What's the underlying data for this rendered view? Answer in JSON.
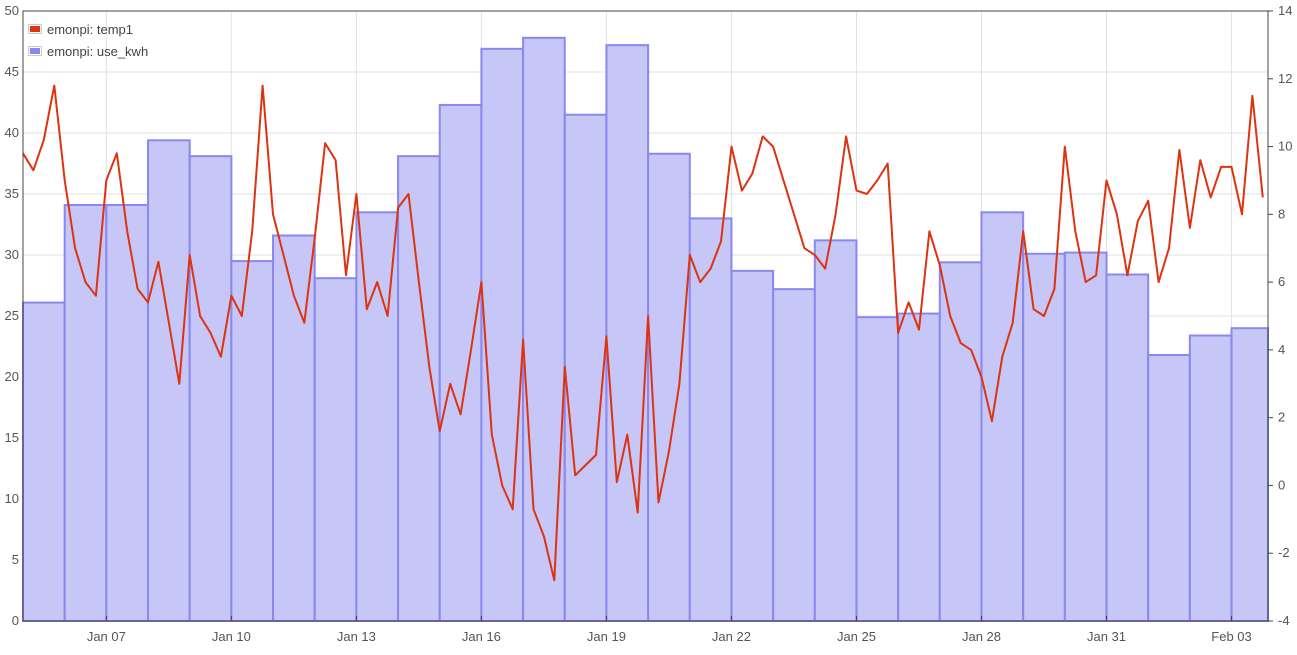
{
  "chart_data": {
    "type": "bar+line",
    "title": "",
    "grid": true,
    "legend_position": "top-left",
    "x_axis": {
      "type": "date",
      "range": [
        "2016-01-05 00:00",
        "2016-02-03 21:00"
      ],
      "ticks": [
        {
          "date": "2016-01-07",
          "label": "Jan 07"
        },
        {
          "date": "2016-01-10",
          "label": "Jan 10"
        },
        {
          "date": "2016-01-13",
          "label": "Jan 13"
        },
        {
          "date": "2016-01-16",
          "label": "Jan 16"
        },
        {
          "date": "2016-01-19",
          "label": "Jan 19"
        },
        {
          "date": "2016-01-22",
          "label": "Jan 22"
        },
        {
          "date": "2016-01-25",
          "label": "Jan 25"
        },
        {
          "date": "2016-01-28",
          "label": "Jan 28"
        },
        {
          "date": "2016-01-31",
          "label": "Jan 31"
        },
        {
          "date": "2016-02-03",
          "label": "Feb 03"
        }
      ]
    },
    "y_axis_left": {
      "min": 0,
      "max": 50,
      "ticks": [
        "0",
        "5",
        "10",
        "15",
        "20",
        "25",
        "30",
        "35",
        "40",
        "45",
        "50"
      ]
    },
    "y_axis_right": {
      "min": -4,
      "max": 14,
      "ticks": [
        "-4",
        "-2",
        "0",
        "2",
        "4",
        "6",
        "8",
        "10",
        "12",
        "14"
      ]
    },
    "series": [
      {
        "name": "emonpi: use_kwh",
        "type": "bar",
        "axis": "left",
        "color": "#8888ee",
        "fill": "#c6c6f7",
        "dates": [
          "2016-01-05",
          "2016-01-06",
          "2016-01-07",
          "2016-01-08",
          "2016-01-09",
          "2016-01-10",
          "2016-01-11",
          "2016-01-12",
          "2016-01-13",
          "2016-01-14",
          "2016-01-15",
          "2016-01-16",
          "2016-01-17",
          "2016-01-18",
          "2016-01-19",
          "2016-01-20",
          "2016-01-21",
          "2016-01-22",
          "2016-01-23",
          "2016-01-24",
          "2016-01-25",
          "2016-01-26",
          "2016-01-27",
          "2016-01-28",
          "2016-01-29",
          "2016-01-30",
          "2016-01-31",
          "2016-02-01",
          "2016-02-02",
          "2016-02-03"
        ],
        "values": [
          26.1,
          34.1,
          34.1,
          39.4,
          38.1,
          29.5,
          31.6,
          28.1,
          33.5,
          38.1,
          42.3,
          46.9,
          47.8,
          41.5,
          47.2,
          38.3,
          33.0,
          28.7,
          27.2,
          31.2,
          24.9,
          25.2,
          29.4,
          33.5,
          30.1,
          30.2,
          28.4,
          21.8,
          23.4,
          24.0
        ]
      },
      {
        "name": "emonpi: temp1",
        "type": "line",
        "axis": "right",
        "color": "#dd3311",
        "points": [
          [
            "2016-01-05 00:00",
            9.8
          ],
          [
            "2016-01-05 06:00",
            9.3
          ],
          [
            "2016-01-05 12:00",
            10.2
          ],
          [
            "2016-01-05 18:00",
            11.8
          ],
          [
            "2016-01-06 00:00",
            9.0
          ],
          [
            "2016-01-06 06:00",
            7.0
          ],
          [
            "2016-01-06 12:00",
            6.0
          ],
          [
            "2016-01-06 18:00",
            5.6
          ],
          [
            "2016-01-07 00:00",
            9.0
          ],
          [
            "2016-01-07 06:00",
            9.8
          ],
          [
            "2016-01-07 12:00",
            7.5
          ],
          [
            "2016-01-07 18:00",
            5.8
          ],
          [
            "2016-01-08 00:00",
            5.4
          ],
          [
            "2016-01-08 06:00",
            6.6
          ],
          [
            "2016-01-08 12:00",
            4.8
          ],
          [
            "2016-01-08 18:00",
            3.0
          ],
          [
            "2016-01-09 00:00",
            6.8
          ],
          [
            "2016-01-09 06:00",
            5.0
          ],
          [
            "2016-01-09 12:00",
            4.5
          ],
          [
            "2016-01-09 18:00",
            3.8
          ],
          [
            "2016-01-10 00:00",
            5.6
          ],
          [
            "2016-01-10 06:00",
            5.0
          ],
          [
            "2016-01-10 12:00",
            7.5
          ],
          [
            "2016-01-10 18:00",
            11.8
          ],
          [
            "2016-01-11 00:00",
            8.0
          ],
          [
            "2016-01-11 06:00",
            6.8
          ],
          [
            "2016-01-11 12:00",
            5.6
          ],
          [
            "2016-01-11 18:00",
            4.8
          ],
          [
            "2016-01-12 00:00",
            7.3
          ],
          [
            "2016-01-12 06:00",
            10.1
          ],
          [
            "2016-01-12 12:00",
            9.6
          ],
          [
            "2016-01-12 18:00",
            6.2
          ],
          [
            "2016-01-13 00:00",
            8.6
          ],
          [
            "2016-01-13 06:00",
            5.2
          ],
          [
            "2016-01-13 12:00",
            6.0
          ],
          [
            "2016-01-13 18:00",
            5.0
          ],
          [
            "2016-01-14 00:00",
            8.2
          ],
          [
            "2016-01-14 06:00",
            8.6
          ],
          [
            "2016-01-14 12:00",
            6.0
          ],
          [
            "2016-01-14 18:00",
            3.5
          ],
          [
            "2016-01-15 00:00",
            1.6
          ],
          [
            "2016-01-15 06:00",
            3.0
          ],
          [
            "2016-01-15 12:00",
            2.1
          ],
          [
            "2016-01-15 18:00",
            4.0
          ],
          [
            "2016-01-16 00:00",
            6.0
          ],
          [
            "2016-01-16 06:00",
            1.5
          ],
          [
            "2016-01-16 12:00",
            0.0
          ],
          [
            "2016-01-16 18:00",
            -0.7
          ],
          [
            "2016-01-17 00:00",
            4.3
          ],
          [
            "2016-01-17 06:00",
            -0.7
          ],
          [
            "2016-01-17 12:00",
            -1.5
          ],
          [
            "2016-01-17 18:00",
            -2.8
          ],
          [
            "2016-01-18 00:00",
            3.5
          ],
          [
            "2016-01-18 06:00",
            0.3
          ],
          [
            "2016-01-18 12:00",
            0.6
          ],
          [
            "2016-01-18 18:00",
            0.9
          ],
          [
            "2016-01-19 00:00",
            4.4
          ],
          [
            "2016-01-19 06:00",
            0.1
          ],
          [
            "2016-01-19 12:00",
            1.5
          ],
          [
            "2016-01-19 18:00",
            -0.8
          ],
          [
            "2016-01-20 00:00",
            5.0
          ],
          [
            "2016-01-20 06:00",
            -0.5
          ],
          [
            "2016-01-20 12:00",
            1.0
          ],
          [
            "2016-01-20 18:00",
            3.0
          ],
          [
            "2016-01-21 00:00",
            6.8
          ],
          [
            "2016-01-21 06:00",
            6.0
          ],
          [
            "2016-01-21 12:00",
            6.4
          ],
          [
            "2016-01-21 18:00",
            7.2
          ],
          [
            "2016-01-22 00:00",
            10.0
          ],
          [
            "2016-01-22 06:00",
            8.7
          ],
          [
            "2016-01-22 12:00",
            9.2
          ],
          [
            "2016-01-22 18:00",
            10.3
          ],
          [
            "2016-01-23 00:00",
            10.0
          ],
          [
            "2016-01-23 06:00",
            9.0
          ],
          [
            "2016-01-23 12:00",
            8.0
          ],
          [
            "2016-01-23 18:00",
            7.0
          ],
          [
            "2016-01-24 00:00",
            6.8
          ],
          [
            "2016-01-24 06:00",
            6.4
          ],
          [
            "2016-01-24 12:00",
            8.0
          ],
          [
            "2016-01-24 18:00",
            10.3
          ],
          [
            "2016-01-25 00:00",
            8.7
          ],
          [
            "2016-01-25 06:00",
            8.6
          ],
          [
            "2016-01-25 12:00",
            9.0
          ],
          [
            "2016-01-25 18:00",
            9.5
          ],
          [
            "2016-01-26 00:00",
            4.5
          ],
          [
            "2016-01-26 06:00",
            5.4
          ],
          [
            "2016-01-26 12:00",
            4.6
          ],
          [
            "2016-01-26 18:00",
            7.5
          ],
          [
            "2016-01-27 00:00",
            6.5
          ],
          [
            "2016-01-27 06:00",
            5.0
          ],
          [
            "2016-01-27 12:00",
            4.2
          ],
          [
            "2016-01-27 18:00",
            4.0
          ],
          [
            "2016-01-28 00:00",
            3.2
          ],
          [
            "2016-01-28 06:00",
            1.9
          ],
          [
            "2016-01-28 12:00",
            3.8
          ],
          [
            "2016-01-28 18:00",
            4.8
          ],
          [
            "2016-01-29 00:00",
            7.5
          ],
          [
            "2016-01-29 06:00",
            5.2
          ],
          [
            "2016-01-29 12:00",
            5.0
          ],
          [
            "2016-01-29 18:00",
            5.8
          ],
          [
            "2016-01-30 00:00",
            10.0
          ],
          [
            "2016-01-30 06:00",
            7.5
          ],
          [
            "2016-01-30 12:00",
            6.0
          ],
          [
            "2016-01-30 18:00",
            6.2
          ],
          [
            "2016-01-31 00:00",
            9.0
          ],
          [
            "2016-01-31 06:00",
            8.0
          ],
          [
            "2016-01-31 12:00",
            6.2
          ],
          [
            "2016-01-31 18:00",
            7.8
          ],
          [
            "2016-02-01 00:00",
            8.4
          ],
          [
            "2016-02-01 06:00",
            6.0
          ],
          [
            "2016-02-01 12:00",
            7.0
          ],
          [
            "2016-02-01 18:00",
            9.9
          ],
          [
            "2016-02-02 00:00",
            7.6
          ],
          [
            "2016-02-02 06:00",
            9.6
          ],
          [
            "2016-02-02 12:00",
            8.5
          ],
          [
            "2016-02-02 18:00",
            9.4
          ],
          [
            "2016-02-03 00:00",
            9.4
          ],
          [
            "2016-02-03 06:00",
            8.0
          ],
          [
            "2016-02-03 12:00",
            11.5
          ],
          [
            "2016-02-03 18:00",
            8.5
          ]
        ]
      }
    ]
  }
}
